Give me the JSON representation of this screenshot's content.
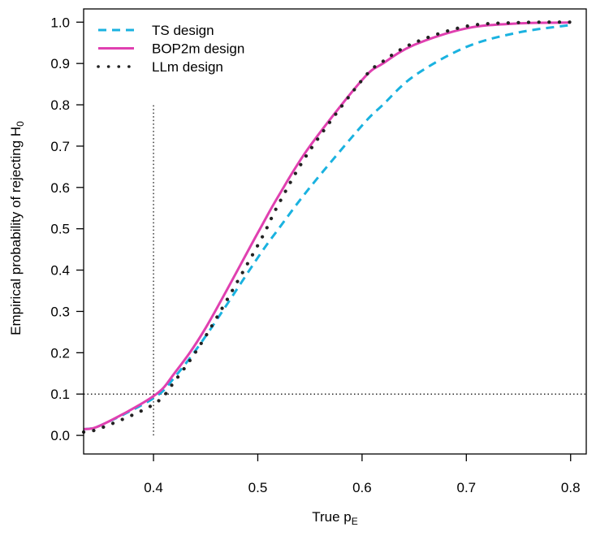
{
  "chart_data": {
    "type": "line",
    "xlabel": {
      "main": "True p",
      "sub": "E"
    },
    "ylabel": {
      "main": "Empirical probability of rejecting  H",
      "sub": "0"
    },
    "xlim": [
      0.333,
      0.815
    ],
    "ylim": [
      -0.045,
      1.032
    ],
    "xticks": [
      0.4,
      0.5,
      0.6,
      0.7,
      0.8
    ],
    "xtick_labels": [
      "0.4",
      "0.5",
      "0.6",
      "0.7",
      "0.8"
    ],
    "yticks": [
      0.0,
      0.1,
      0.2,
      0.3,
      0.4,
      0.5,
      0.6,
      0.7,
      0.8,
      0.9,
      1.0
    ],
    "ytick_labels": [
      "0.0",
      "0.1",
      "0.2",
      "0.3",
      "0.4",
      "0.5",
      "0.6",
      "0.7",
      "0.8",
      "0.9",
      "1.0"
    ],
    "grid": false,
    "legend_position": "top-left",
    "reference_lines": [
      {
        "orientation": "vertical",
        "x": 0.4,
        "y_from": 0.0,
        "y_to": 0.8,
        "style": "dotted",
        "color": "#000000"
      },
      {
        "orientation": "horizontal",
        "y": 0.1,
        "style": "dotted",
        "color": "#000000"
      }
    ],
    "series": [
      {
        "name": "TS design",
        "style": "dashed",
        "color": "#1ab2e0",
        "x": [
          0.333,
          0.35,
          0.4,
          0.42,
          0.45,
          0.5,
          0.52,
          0.55,
          0.6,
          0.62,
          0.65,
          0.7,
          0.75,
          0.8
        ],
        "y": [
          0.015,
          0.025,
          0.09,
          0.14,
          0.24,
          0.43,
          0.5,
          0.6,
          0.75,
          0.8,
          0.87,
          0.94,
          0.975,
          0.993
        ]
      },
      {
        "name": "BOP2m design",
        "style": "solid",
        "color": "#e040b0",
        "x": [
          0.333,
          0.35,
          0.4,
          0.42,
          0.45,
          0.5,
          0.52,
          0.55,
          0.6,
          0.62,
          0.65,
          0.7,
          0.75,
          0.8
        ],
        "y": [
          0.015,
          0.025,
          0.095,
          0.15,
          0.26,
          0.49,
          0.58,
          0.7,
          0.86,
          0.9,
          0.945,
          0.985,
          0.997,
          0.999
        ]
      },
      {
        "name": "LLm design",
        "style": "dotted",
        "color": "#222222",
        "x": [
          0.333,
          0.35,
          0.4,
          0.42,
          0.45,
          0.5,
          0.52,
          0.55,
          0.6,
          0.62,
          0.65,
          0.7,
          0.75,
          0.8
        ],
        "y": [
          0.008,
          0.018,
          0.075,
          0.13,
          0.24,
          0.46,
          0.56,
          0.69,
          0.86,
          0.905,
          0.95,
          0.99,
          0.999,
          1.0
        ]
      }
    ]
  }
}
